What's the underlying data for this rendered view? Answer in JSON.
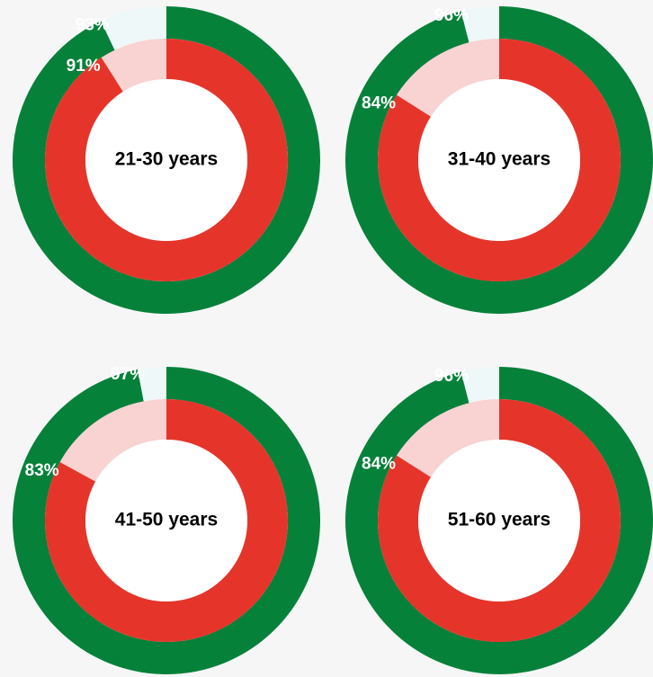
{
  "chart_data": [
    {
      "type": "donut",
      "title": "21-30 years",
      "range": [
        0,
        100
      ],
      "series": [
        {
          "color": "#06813a",
          "remainder_color": "#eff8f8",
          "values": [
            93
          ],
          "value_labels": [
            "93%"
          ]
        },
        {
          "color": "#e5352b",
          "remainder_color": "#f9d2d2",
          "values": [
            91
          ],
          "value_labels": [
            "91%"
          ]
        }
      ]
    },
    {
      "type": "donut",
      "title": "31-40 years",
      "range": [
        0,
        100
      ],
      "series": [
        {
          "color": "#06813a",
          "remainder_color": "#eff8f8",
          "values": [
            96
          ],
          "value_labels": [
            "96%"
          ]
        },
        {
          "color": "#e5352b",
          "remainder_color": "#f9d2d2",
          "values": [
            84
          ],
          "value_labels": [
            "84%"
          ]
        }
      ]
    },
    {
      "type": "donut",
      "title": "41-50 years",
      "range": [
        0,
        100
      ],
      "series": [
        {
          "color": "#06813a",
          "remainder_color": "#eff8f8",
          "values": [
            97
          ],
          "value_labels": [
            "97%"
          ]
        },
        {
          "color": "#e5352b",
          "remainder_color": "#f9d2d2",
          "values": [
            83
          ],
          "value_labels": [
            "83%"
          ]
        }
      ]
    },
    {
      "type": "donut",
      "title": "51-60 years",
      "range": [
        0,
        100
      ],
      "series": [
        {
          "color": "#06813a",
          "remainder_color": "#eff8f8",
          "values": [
            96
          ],
          "value_labels": [
            "96%"
          ]
        },
        {
          "color": "#e5352b",
          "remainder_color": "#f9d2d2",
          "values": [
            84
          ],
          "value_labels": [
            "84%"
          ]
        }
      ]
    }
  ]
}
